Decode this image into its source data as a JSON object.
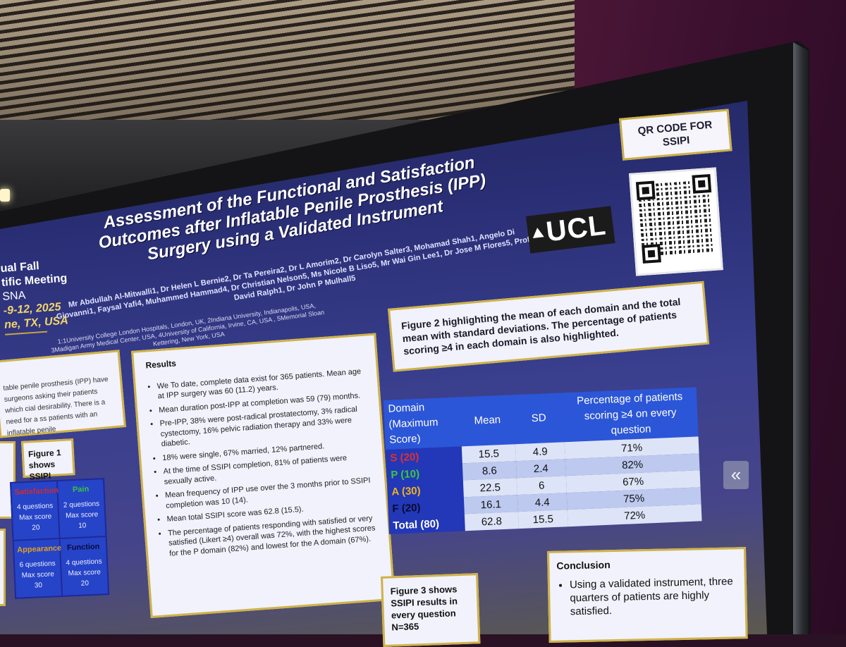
{
  "poster": {
    "title": "Assessment of the Functional and Satisfaction Outcomes after Inflatable Penile Prosthesis (IPP) Surgery using a Validated Instrument",
    "authors": "Mr Abdullah Al-Mitwalli1, Dr Helen L Bernie2, Dr Ta Pereira2, Dr L Amorim2, Dr Carolyn Salter3, Mohamad Shah1, Angelo Di Giovanni1, Faysal Yafi4, Muhammed Hammad4, Dr Christian Nelson5, Ms Nicole B Liso5, Mr Wai Gin Lee1, Dr Jose M Flores5, Prof David Ralph1, Dr John P Mulhall5",
    "affiliations": "1:1University College London Hospitals, London, UK, 2Indiana University, Indianapolis, USA, 3Madigan Army Medical Center, USA, 4University of California, Irvine, CA, USA , 5Memorial Sloan Kettering, New York, USA",
    "meeting": {
      "line1": "ual Fall",
      "line2": "tific Meeting",
      "line3": "SNA",
      "line4": "-9-12, 2025",
      "line5": "ne, TX, USA"
    },
    "logo": "UCL",
    "qr_label": "QR CODE FOR SSIPI"
  },
  "intro": {
    "text": "table penile prosthesis (IPP) have surgeons asking their patients which cial desirability. There is a need for a ss patients with an inflatable penile"
  },
  "figure1": {
    "label": "Figure 1 shows SSIPI domains:",
    "domains": [
      {
        "name": "Satisfaction",
        "questions": "4 questions",
        "max": "Max score 20",
        "color": "#d42a2a"
      },
      {
        "name": "Pain",
        "questions": "2 questions",
        "max": "Max score 10",
        "color": "#3cc43c"
      },
      {
        "name": "Appearance",
        "questions": "6 questions",
        "max": "Max score 30",
        "color": "#e0a020"
      },
      {
        "name": "Function",
        "questions": "4 questions",
        "max": "Max score 20",
        "color": "#0a0a3a"
      }
    ]
  },
  "results": {
    "heading": "Results",
    "items": [
      "We To date, complete data exist for 365 patients. Mean age at IPP surgery was 60 (11.2) years.",
      "Mean duration post-IPP at completion was 59 (79) months.",
      "Pre-IPP, 38% were post-radical prostatectomy, 3% radical cystectomy, 16% pelvic radiation therapy and 33% were diabetic.",
      "18% were single, 67% married, 12% partnered.",
      "At the time of SSIPI completion, 81% of patients were sexually active.",
      "Mean frequency of IPP use over the 3 months prior to SSIPI completion was 10 (14).",
      "Mean total SSIPI score was 62.8 (15.5).",
      "The percentage of patients responding with satisfied or very satisfied (Likert ≥4) overall was 72%, with the highest scores for the P domain (82%) and lowest for the A domain (67%)."
    ]
  },
  "figure2": {
    "caption": "Figure 2 highlighting the mean of each domain and the total mean with standard deviations. The percentage of patients scoring ≥4 in each domain is also highlighted.",
    "headers": [
      "Domain (Maximum Score)",
      "Mean",
      "SD",
      "Percentage of patients scoring ≥4 on every question"
    ],
    "rows": [
      {
        "domain": "S (20)",
        "mean": "15.5",
        "sd": "4.9",
        "pct": "71%",
        "color": "#e03030"
      },
      {
        "domain": "P (10)",
        "mean": "8.6",
        "sd": "2.4",
        "pct": "82%",
        "color": "#3cc83c"
      },
      {
        "domain": "A (30)",
        "mean": "22.5",
        "sd": "6",
        "pct": "67%",
        "color": "#f0b020"
      },
      {
        "domain": "F (20)",
        "mean": "16.1",
        "sd": "4.4",
        "pct": "75%",
        "color": "#0a0a30"
      },
      {
        "domain": "Total (80)",
        "mean": "62.8",
        "sd": "15.5",
        "pct": "72%",
        "color": "#ffffff"
      }
    ]
  },
  "figure3": {
    "label": "Figure 3 shows SSIPI results in every question N=365"
  },
  "conclusion": {
    "heading": "Conclusion",
    "items": [
      "Using a validated instrument, three quarters of patients are highly satisfied."
    ]
  },
  "ui": {
    "collapse_glyph": "«"
  }
}
